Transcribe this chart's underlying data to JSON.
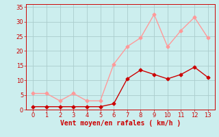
{
  "x": [
    0,
    1,
    2,
    3,
    4,
    5,
    6,
    7,
    8,
    9,
    10,
    11,
    12,
    13
  ],
  "wind_avg": [
    1,
    1,
    1,
    1,
    1,
    1,
    2,
    10.5,
    13.5,
    12,
    10.5,
    12,
    14.5,
    11
  ],
  "wind_gust": [
    5.5,
    5.5,
    3,
    5.5,
    3,
    3,
    15.5,
    21.5,
    24.5,
    32.5,
    21.5,
    27,
    31.5,
    24.5
  ],
  "color_avg": "#cc0000",
  "color_gust": "#ff9999",
  "bg_color": "#cceeee",
  "grid_color": "#aacccc",
  "tick_color": "#cc0000",
  "xlabel": "Vent moyen/en rafales ( km/h )",
  "xlabel_color": "#cc0000",
  "xlim": [
    -0.5,
    13.5
  ],
  "ylim": [
    0,
    36
  ],
  "yticks": [
    0,
    5,
    10,
    15,
    20,
    25,
    30,
    35
  ],
  "xticks": [
    0,
    1,
    2,
    3,
    4,
    5,
    6,
    7,
    8,
    9,
    10,
    11,
    12,
    13
  ],
  "marker": "D",
  "markersize": 2.5,
  "linewidth": 1.0
}
